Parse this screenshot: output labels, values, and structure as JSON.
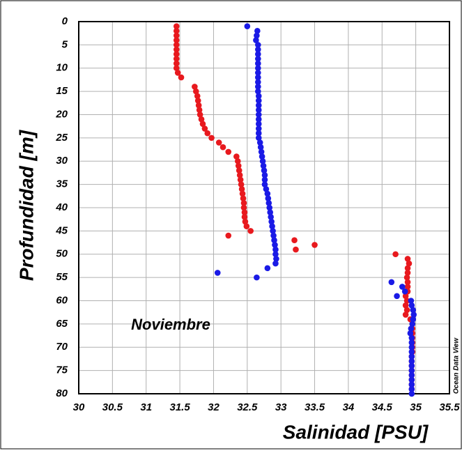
{
  "chart_data": {
    "type": "scatter",
    "x_label": "Salinidad [PSU]",
    "y_label": "Profundidad [m]",
    "annotations": [
      "Noviembre",
      "Ocean Data View"
    ],
    "xlim": [
      30,
      35.5
    ],
    "xticks": [
      30,
      30.5,
      31,
      31.5,
      32,
      32.5,
      33,
      33.5,
      34,
      34.5,
      35,
      35.5
    ],
    "ylim": [
      80,
      0
    ],
    "yticks": [
      0,
      5,
      10,
      15,
      20,
      25,
      30,
      35,
      40,
      45,
      50,
      55,
      60,
      65,
      70,
      75,
      80
    ],
    "grid": true,
    "series": [
      {
        "color": "#e8191e",
        "x": [
          31.45,
          31.45,
          31.45,
          31.45,
          31.45,
          31.45,
          31.45,
          31.45,
          31.45,
          31.45,
          31.47,
          31.52,
          31.72,
          31.74,
          31.76,
          31.77,
          31.78,
          31.79,
          31.8,
          31.82,
          31.84,
          31.87,
          31.91,
          31.97,
          32.08,
          32.14,
          32.22,
          32.34,
          32.36,
          32.37,
          32.38,
          32.39,
          32.4,
          32.41,
          32.42,
          32.43,
          32.44,
          32.45,
          32.45,
          32.46,
          32.46,
          32.47,
          32.49,
          32.55,
          32.22,
          33.2,
          33.5,
          33.22,
          34.7,
          34.88,
          34.9,
          34.88,
          34.88,
          34.87,
          34.88,
          34.88,
          34.88,
          34.85,
          34.87,
          34.85,
          34.87,
          34.85,
          34.92,
          34.95,
          34.95,
          34.95,
          34.95,
          34.95,
          34.95,
          34.95,
          34.94,
          34.94,
          34.94,
          34.94,
          34.94,
          34.94,
          34.94,
          34.94
        ],
        "y": [
          1,
          2,
          3,
          4,
          5,
          6,
          7,
          8,
          9,
          10,
          11,
          12,
          14,
          15,
          16,
          17,
          18,
          19,
          20,
          21,
          22,
          23,
          24,
          25,
          26,
          27,
          28,
          29,
          30,
          31,
          32,
          33,
          34,
          35,
          36,
          37,
          38,
          39,
          40,
          41,
          42,
          43,
          44,
          45,
          46,
          47,
          48,
          49,
          50,
          51,
          52,
          53,
          54,
          55,
          56,
          57,
          58,
          59,
          60,
          61,
          62,
          63,
          64,
          65,
          66,
          67,
          68,
          69,
          70,
          71,
          72,
          73,
          74,
          75,
          76,
          77,
          78,
          79
        ]
      },
      {
        "color": "#1a1ae6",
        "x": [
          32.5,
          32.65,
          32.64,
          32.63,
          32.66,
          32.66,
          32.66,
          32.66,
          32.66,
          32.66,
          32.66,
          32.66,
          32.66,
          32.66,
          32.66,
          32.67,
          32.67,
          32.67,
          32.67,
          32.67,
          32.67,
          32.67,
          32.67,
          32.67,
          32.67,
          32.69,
          32.7,
          32.71,
          32.72,
          32.73,
          32.74,
          32.75,
          32.76,
          32.76,
          32.76,
          32.78,
          32.8,
          32.81,
          32.82,
          32.83,
          32.84,
          32.85,
          32.86,
          32.87,
          32.88,
          32.89,
          32.9,
          32.91,
          32.92,
          32.92,
          32.93,
          32.92,
          32.8,
          32.06,
          32.64,
          34.64,
          34.8,
          34.84,
          34.72,
          34.93,
          34.94,
          34.96,
          34.97,
          34.96,
          34.95,
          34.93,
          34.92,
          34.94,
          34.94,
          34.94,
          34.94,
          34.94,
          34.94,
          34.94,
          34.94,
          34.94,
          34.94,
          34.94,
          34.94,
          34.94
        ],
        "y": [
          1,
          2,
          3,
          4,
          5,
          6,
          7,
          8,
          9,
          10,
          11,
          12,
          13,
          14,
          15,
          16,
          17,
          18,
          19,
          20,
          21,
          22,
          23,
          24,
          25,
          26,
          27,
          28,
          29,
          30,
          31,
          32,
          33,
          34,
          35,
          36,
          37,
          38,
          39,
          40,
          41,
          42,
          43,
          44,
          45,
          46,
          47,
          48,
          49,
          50,
          51,
          52,
          53,
          54,
          55,
          56,
          57,
          58,
          59,
          60,
          61,
          62,
          63,
          64,
          65,
          66,
          67,
          68,
          69,
          70,
          71,
          72,
          73,
          74,
          75,
          76,
          77,
          78,
          79,
          80
        ]
      }
    ]
  }
}
